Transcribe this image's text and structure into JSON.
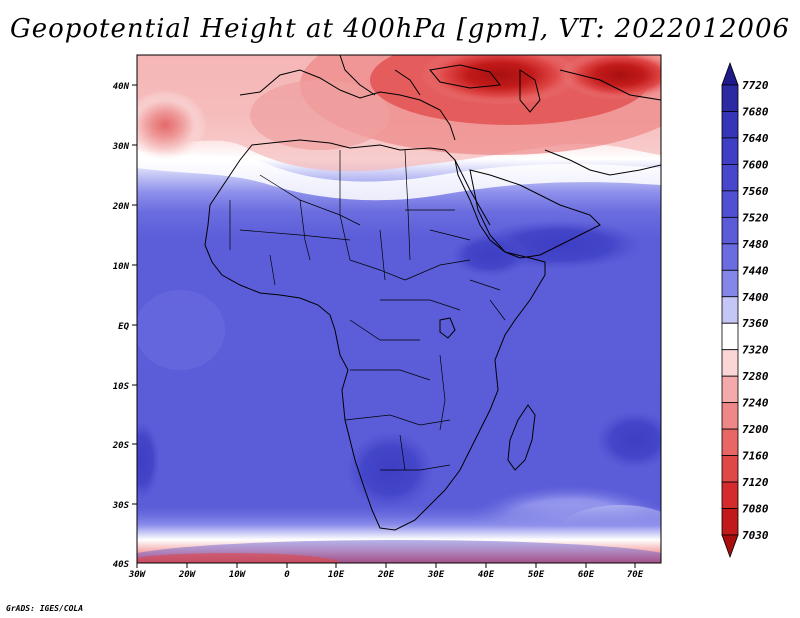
{
  "title": "Geopotential Height at 400hPa [gpm], VT: 2022012006",
  "credit": "GrADS: IGES/COLA",
  "lat_labels": [
    "40N",
    "30N",
    "20N",
    "10N",
    "EQ",
    "10S",
    "20S",
    "30S",
    "40S"
  ],
  "lon_labels": [
    "30W",
    "20W",
    "10W",
    "0",
    "10E",
    "20E",
    "30E",
    "40E",
    "50E",
    "60E",
    "70E"
  ],
  "colorbar": {
    "labels": [
      "7720",
      "7680",
      "7640",
      "7600",
      "7560",
      "7520",
      "7480",
      "7440",
      "7400",
      "7360",
      "7320",
      "7280",
      "7240",
      "7200",
      "7160",
      "7120",
      "7080",
      "7030"
    ],
    "colors": [
      "#1e1a8a",
      "#2b2aa3",
      "#3535b8",
      "#3e3fc5",
      "#4747cc",
      "#5051d2",
      "#5a5cd8",
      "#6a6cdf",
      "#8587e8",
      "#c4c6f6",
      "#ffffff",
      "#fbd6d6",
      "#f4aaaa",
      "#ee8787",
      "#e86666",
      "#e04848",
      "#d42c2c",
      "#c21a1a",
      "#a80e0e"
    ]
  },
  "legend_colors": {
    "deep_blue": "#3d3ec4",
    "mid_blue": "#5051d2",
    "blue": "#6264db",
    "light_blue": "#8e90eb",
    "pale_blue": "#c6c8f6",
    "white": "#ffffff",
    "pale_red": "#fbdede",
    "light_red": "#f3a6a6",
    "red": "#e76a6a",
    "dark_red": "#cf2e2e",
    "deepest_red": "#a81010"
  }
}
